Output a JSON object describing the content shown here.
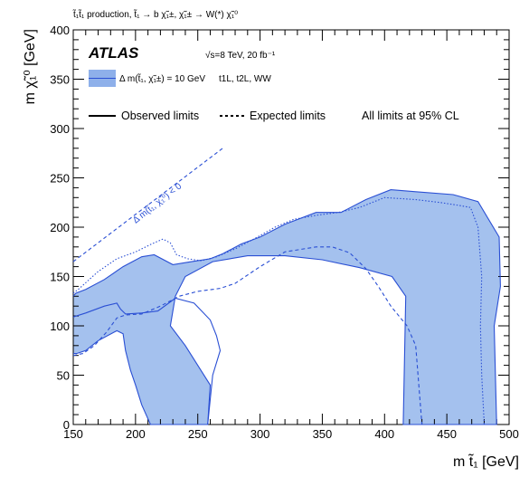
{
  "chart_data": {
    "type": "area",
    "title": "t̃₁t̃₁ production, t̃₁ → b χ̃₁±, χ̃₁± → W(*) χ̃₁⁰",
    "experiment": "ATLAS",
    "energy_lumi": "√s=8 TeV, 20 fb⁻¹",
    "band_label": "Δ m(t̃₁, χ̃₁±) = 10 GeV",
    "band_channels": "t1L, t2L, WW",
    "legend_observed": "Observed limits",
    "legend_expected": "Expected limits",
    "cl_note": "All limits at 95% CL",
    "diagonal_label": "Δ m(t̃₁, χ̃₁⁰) < 0",
    "xlabel": "m t̃₁ [GeV]",
    "ylabel": "m χ̃₁⁰ [GeV]",
    "xlim": [
      150,
      500
    ],
    "ylim": [
      0,
      400
    ],
    "xticks": [
      150,
      200,
      250,
      300,
      350,
      400,
      450,
      500
    ],
    "yticks": [
      0,
      50,
      100,
      150,
      200,
      250,
      300,
      350,
      400
    ],
    "colors": {
      "fill": "#a4c1ee",
      "line": "#2a4fd4",
      "legend_fill": "#8eb0ea"
    },
    "series": [
      {
        "name": "Observed limits",
        "style": "solid",
        "points": [
          [
            150,
            130
          ],
          [
            152,
            133
          ],
          [
            160,
            137
          ],
          [
            175,
            147
          ],
          [
            190,
            160
          ],
          [
            205,
            170
          ],
          [
            215,
            172
          ],
          [
            230,
            162
          ],
          [
            245,
            165
          ],
          [
            260,
            168
          ],
          [
            270,
            173
          ],
          [
            285,
            183
          ],
          [
            300,
            190
          ],
          [
            320,
            203
          ],
          [
            345,
            215
          ],
          [
            365,
            215
          ],
          [
            385,
            228
          ],
          [
            405,
            238
          ],
          [
            425,
            236
          ],
          [
            455,
            233
          ],
          [
            475,
            226
          ],
          [
            492,
            190
          ],
          [
            493,
            140
          ],
          [
            488,
            100
          ],
          [
            490,
            0
          ],
          [
            415,
            0
          ],
          [
            417,
            130
          ],
          [
            406,
            150
          ],
          [
            380,
            159
          ],
          [
            350,
            167
          ],
          [
            320,
            171
          ],
          [
            290,
            171
          ],
          [
            262,
            165
          ],
          [
            240,
            150
          ],
          [
            232,
            130
          ],
          [
            228,
            100
          ],
          [
            240,
            80
          ],
          [
            260,
            40
          ],
          [
            258,
            0
          ],
          [
            212,
            0
          ],
          [
            205,
            20
          ],
          [
            200,
            40
          ],
          [
            196,
            55
          ],
          [
            192,
            75
          ],
          [
            190,
            92
          ],
          [
            185,
            95
          ],
          [
            170,
            85
          ],
          [
            160,
            75
          ],
          [
            153,
            72
          ],
          [
            150,
            72
          ]
        ]
      },
      {
        "name": "Expected limits",
        "style": "dotted",
        "points": [
          [
            150,
            133
          ],
          [
            155,
            138
          ],
          [
            170,
            155
          ],
          [
            185,
            168
          ],
          [
            200,
            175
          ],
          [
            213,
            183
          ],
          [
            222,
            188
          ],
          [
            228,
            184
          ],
          [
            233,
            172
          ],
          [
            242,
            168
          ],
          [
            253,
            166
          ],
          [
            265,
            170
          ],
          [
            280,
            178
          ],
          [
            295,
            188
          ],
          [
            312,
            200
          ],
          [
            327,
            208
          ],
          [
            345,
            212
          ],
          [
            363,
            215
          ],
          [
            380,
            220
          ],
          [
            400,
            230
          ],
          [
            425,
            228
          ],
          [
            445,
            225
          ],
          [
            460,
            222
          ],
          [
            469,
            220
          ],
          [
            475,
            200
          ],
          [
            478,
            150
          ],
          [
            477,
            100
          ],
          [
            478,
            50
          ],
          [
            480,
            0
          ]
        ]
      },
      {
        "name": "Expected limits (inner)",
        "style": "dashed",
        "points": [
          [
            150,
            70
          ],
          [
            158,
            72
          ],
          [
            167,
            80
          ],
          [
            177,
            94
          ],
          [
            185,
            108
          ],
          [
            192,
            111
          ],
          [
            205,
            112
          ],
          [
            220,
            120
          ],
          [
            235,
            130
          ],
          [
            250,
            135
          ],
          [
            268,
            138
          ],
          [
            280,
            143
          ],
          [
            300,
            160
          ],
          [
            320,
            175
          ],
          [
            345,
            180
          ],
          [
            358,
            180
          ],
          [
            372,
            174
          ],
          [
            385,
            158
          ],
          [
            395,
            140
          ],
          [
            405,
            120
          ],
          [
            418,
            100
          ],
          [
            425,
            80
          ],
          [
            430,
            0
          ]
        ]
      },
      {
        "name": "Observed limits (inner)",
        "style": "solid",
        "points": [
          [
            150,
            109
          ],
          [
            160,
            113
          ],
          [
            175,
            120
          ],
          [
            185,
            123
          ],
          [
            188,
            117
          ],
          [
            192,
            112
          ],
          [
            205,
            113
          ],
          [
            218,
            115
          ],
          [
            232,
            128
          ],
          [
            247,
            123
          ],
          [
            260,
            106
          ],
          [
            265,
            90
          ],
          [
            268,
            75
          ],
          [
            262,
            50
          ],
          [
            258,
            0
          ]
        ]
      },
      {
        "name": "Diagonal",
        "style": "dashed",
        "points": [
          [
            150,
            165
          ],
          [
            270,
            280
          ]
        ]
      }
    ]
  }
}
